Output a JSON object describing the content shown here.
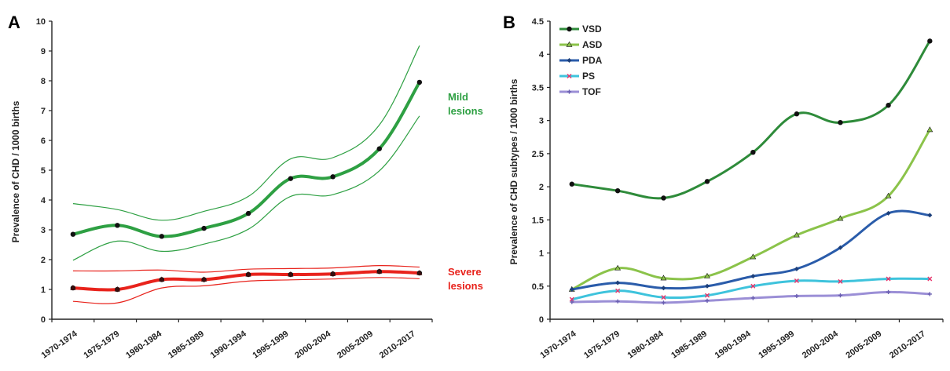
{
  "chart_data": [
    {
      "type": "line",
      "panel_label": "A",
      "ylabel": "Prevalence of CHD / 1000 births",
      "ylim": [
        0,
        10
      ],
      "yticks": [
        "0",
        "1",
        "2",
        "3",
        "4",
        "5",
        "6",
        "7",
        "8",
        "9",
        "10"
      ],
      "categories": [
        "1970-1974",
        "1975-1979",
        "1980-1984",
        "1985-1989",
        "1990-1994",
        "1995-1999",
        "2000-2004",
        "2005-2009",
        "2010-2017"
      ],
      "x": [
        0.5,
        1.55,
        2.6,
        3.6,
        4.65,
        5.65,
        6.65,
        7.75,
        8.7
      ],
      "grid": false,
      "series": [
        {
          "name": "Mild lesions",
          "color": "#2ea043",
          "values": [
            2.85,
            3.15,
            2.78,
            3.05,
            3.55,
            4.72,
            4.78,
            5.72,
            7.95
          ],
          "ci_lower": [
            1.98,
            2.62,
            2.28,
            2.52,
            3.02,
            4.12,
            4.18,
            4.98,
            6.82
          ],
          "ci_upper": [
            3.88,
            3.68,
            3.32,
            3.62,
            4.12,
            5.38,
            5.42,
            6.52,
            9.18
          ]
        },
        {
          "name": "Severe lesions",
          "color": "#e8231c",
          "values": [
            1.05,
            1.0,
            1.33,
            1.33,
            1.5,
            1.5,
            1.52,
            1.6,
            1.55
          ],
          "ci_lower": [
            0.6,
            0.55,
            1.05,
            1.12,
            1.28,
            1.32,
            1.35,
            1.4,
            1.36
          ],
          "ci_upper": [
            1.62,
            1.62,
            1.65,
            1.58,
            1.68,
            1.7,
            1.72,
            1.8,
            1.75
          ]
        }
      ],
      "annotations": [
        {
          "lines": [
            "Mild",
            "lesions"
          ],
          "color": "#2ea043"
        },
        {
          "lines": [
            "Severe",
            "lesions"
          ],
          "color": "#e8231c"
        }
      ]
    },
    {
      "type": "line",
      "panel_label": "B",
      "ylabel": "Prevalence of CHD subtypes / 1000 births",
      "ylim": [
        0,
        4.5
      ],
      "yticks": [
        "0",
        "0.5",
        "1",
        "1.5",
        "2",
        "2.5",
        "3",
        "3.5",
        "4",
        "4.5"
      ],
      "categories": [
        "1970-1974",
        "1975-1979",
        "1980-1984",
        "1985-1989",
        "1990-1994",
        "1995-1999",
        "2000-2004",
        "2005-2009",
        "2010-2017"
      ],
      "x": [
        0.5,
        1.55,
        2.6,
        3.6,
        4.65,
        5.65,
        6.65,
        7.75,
        8.7
      ],
      "grid": false,
      "legend": "top-left",
      "series": [
        {
          "name": "VSD",
          "color": "#2e8b3a",
          "marker": "circle",
          "values": [
            2.04,
            1.94,
            1.83,
            2.08,
            2.52,
            3.1,
            2.97,
            3.23,
            4.2
          ]
        },
        {
          "name": "ASD",
          "color": "#8bc34a",
          "marker": "triangle",
          "values": [
            0.45,
            0.77,
            0.62,
            0.65,
            0.94,
            1.27,
            1.52,
            1.86,
            2.86
          ]
        },
        {
          "name": "PDA",
          "color": "#2a5caa",
          "marker": "diamond",
          "values": [
            0.45,
            0.55,
            0.47,
            0.5,
            0.65,
            0.76,
            1.08,
            1.6,
            1.57
          ]
        },
        {
          "name": "PS",
          "color": "#3ec3dc",
          "marker": "x",
          "values": [
            0.3,
            0.43,
            0.33,
            0.36,
            0.5,
            0.58,
            0.57,
            0.61,
            0.61
          ]
        },
        {
          "name": "TOF",
          "color": "#9b8fd6",
          "marker": "plus",
          "values": [
            0.26,
            0.27,
            0.25,
            0.28,
            0.32,
            0.35,
            0.36,
            0.41,
            0.38
          ]
        }
      ]
    }
  ]
}
